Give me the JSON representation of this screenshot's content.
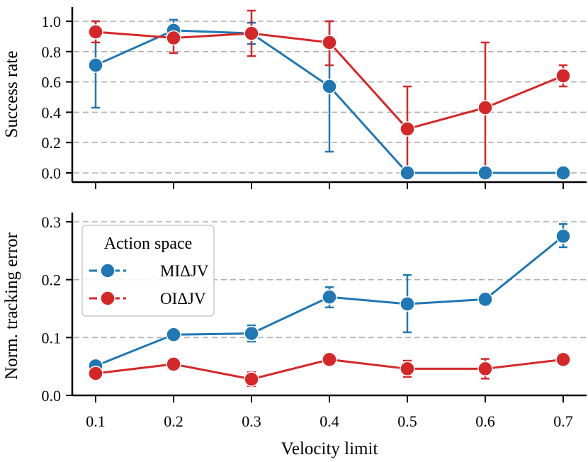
{
  "figure": {
    "xlabel": "Velocity limit",
    "x_ticks": [
      "0.1",
      "0.2",
      "0.3",
      "0.4",
      "0.5",
      "0.6",
      "0.7"
    ]
  },
  "legend": {
    "title": "Action space",
    "items": [
      {
        "label": "MIΔJV",
        "color": "#1f77b4"
      },
      {
        "label": "OIΔJV",
        "color": "#d62728"
      }
    ]
  },
  "chart_data": [
    {
      "type": "line",
      "title": "",
      "xlabel": "",
      "ylabel": "Success rate",
      "x": [
        0.1,
        0.2,
        0.3,
        0.4,
        0.5,
        0.6,
        0.7
      ],
      "ylim": [
        -0.05,
        1.05
      ],
      "yticks": [
        0.0,
        0.2,
        0.4,
        0.6,
        0.8,
        1.0
      ],
      "ytick_labels": [
        "0.0",
        "0.2",
        "0.4",
        "0.6",
        "0.8",
        "1.0"
      ],
      "grid": "y dashed",
      "series": [
        {
          "name": "MIΔJV",
          "color": "#1f77b4",
          "values": [
            0.71,
            0.94,
            0.92,
            0.57,
            0.0,
            0.0,
            0.0
          ],
          "err_low": [
            0.43,
            0.87,
            0.85,
            0.14,
            0.0,
            0.0,
            0.0
          ],
          "err_high": [
            1.0,
            1.01,
            0.99,
            1.0,
            0.0,
            0.0,
            0.0
          ]
        },
        {
          "name": "OIΔJV",
          "color": "#d62728",
          "values": [
            0.93,
            0.89,
            0.92,
            0.86,
            0.29,
            0.43,
            0.64
          ],
          "err_low": [
            0.86,
            0.79,
            0.77,
            0.71,
            0.0,
            0.0,
            0.57
          ],
          "err_high": [
            1.0,
            0.96,
            1.07,
            1.0,
            0.57,
            0.86,
            0.71
          ]
        }
      ]
    },
    {
      "type": "line",
      "title": "",
      "xlabel": "Velocity limit",
      "ylabel": "Norm. tracking error",
      "x": [
        0.1,
        0.2,
        0.3,
        0.4,
        0.5,
        0.6,
        0.7
      ],
      "ylim": [
        0.0,
        0.31
      ],
      "yticks": [
        0.0,
        0.1,
        0.2,
        0.3
      ],
      "ytick_labels": [
        "0.0",
        "0.1",
        "0.2",
        "0.3"
      ],
      "grid": "y dashed",
      "legend_position": "upper-left",
      "series": [
        {
          "name": "MIΔJV",
          "color": "#1f77b4",
          "values": [
            0.051,
            0.105,
            0.107,
            0.17,
            0.158,
            0.166,
            0.275
          ],
          "err_low": [
            0.051,
            0.105,
            0.093,
            0.152,
            0.109,
            0.166,
            0.256
          ],
          "err_high": [
            0.051,
            0.105,
            0.121,
            0.187,
            0.208,
            0.166,
            0.296
          ]
        },
        {
          "name": "OIΔJV",
          "color": "#d62728",
          "values": [
            0.038,
            0.054,
            0.028,
            0.062,
            0.046,
            0.046,
            0.062
          ],
          "err_low": [
            0.038,
            0.054,
            0.016,
            0.062,
            0.032,
            0.029,
            0.062
          ],
          "err_high": [
            0.038,
            0.054,
            0.04,
            0.062,
            0.06,
            0.063,
            0.062
          ]
        }
      ]
    }
  ]
}
